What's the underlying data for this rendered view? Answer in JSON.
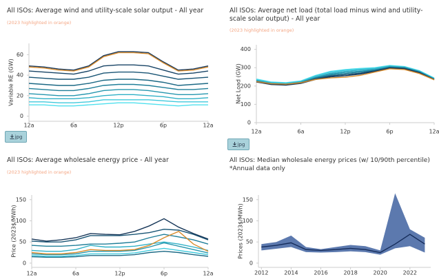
{
  "chart_data": [
    {
      "type": "line",
      "title": "All ISOs: Average wind and utility-scale solar output - All year",
      "subtitle": "(2023 highlighted in orange)",
      "ylabel": "Variable RE (GW)",
      "x": [
        0,
        2,
        4,
        6,
        8,
        10,
        12,
        14,
        16,
        18,
        20,
        22,
        24
      ],
      "xlim": [
        0,
        24
      ],
      "xticks": [
        {
          "value": 0,
          "label": "12a"
        },
        {
          "value": 6,
          "label": "6a"
        },
        {
          "value": 12,
          "label": "12p"
        },
        {
          "value": 18,
          "label": "6p"
        },
        {
          "value": 24,
          "label": "12a"
        }
      ],
      "ylim": [
        -5,
        71
      ],
      "yticks": [
        0,
        20,
        40,
        60
      ],
      "series": [
        {
          "color": "#4fe0ee",
          "values": [
            11,
            11,
            10,
            10,
            11,
            12,
            13,
            13,
            12,
            11,
            10,
            11,
            11
          ]
        },
        {
          "color": "#3fc9dc",
          "values": [
            14,
            14,
            13,
            13,
            14,
            16,
            16,
            16,
            16,
            15,
            14,
            14,
            14
          ]
        },
        {
          "color": "#2fb0c6",
          "values": [
            18,
            17,
            17,
            17,
            18,
            20,
            21,
            21,
            20,
            19,
            17,
            17,
            18
          ]
        },
        {
          "color": "#2596ae",
          "values": [
            22,
            21,
            20,
            20,
            22,
            25,
            26,
            26,
            25,
            23,
            21,
            21,
            22
          ]
        },
        {
          "color": "#1f7e98",
          "values": [
            27,
            26,
            25,
            25,
            27,
            30,
            31,
            31,
            30,
            28,
            26,
            26,
            27
          ]
        },
        {
          "color": "#1b6884",
          "values": [
            32,
            31,
            30,
            30,
            32,
            35,
            36,
            36,
            35,
            33,
            30,
            31,
            32
          ]
        },
        {
          "color": "#185474",
          "values": [
            38,
            37,
            36,
            36,
            38,
            42,
            43,
            43,
            42,
            39,
            36,
            37,
            38
          ]
        },
        {
          "color": "#174365",
          "values": [
            44,
            43,
            42,
            41,
            44,
            49,
            50,
            50,
            49,
            45,
            41,
            42,
            44
          ]
        },
        {
          "color": "#163658",
          "values": [
            49,
            48,
            46,
            45,
            49,
            59,
            63,
            63,
            62,
            53,
            45,
            46,
            49
          ]
        },
        {
          "color": "#d98b2b",
          "values": [
            48,
            47,
            45,
            44,
            48,
            58,
            62,
            62,
            61,
            52,
            44,
            45,
            48
          ]
        }
      ]
    },
    {
      "type": "line",
      "title": "All ISOs: Average net load (total load minus wind and utility-scale solar output) - All year",
      "subtitle": "(2023 highlighted in orange)",
      "ylabel": "Net Load (GW)",
      "x": [
        0,
        2,
        4,
        6,
        8,
        10,
        12,
        14,
        16,
        18,
        20,
        22,
        24
      ],
      "xlim": [
        0,
        24
      ],
      "xticks": [
        {
          "value": 0,
          "label": "12a"
        },
        {
          "value": 6,
          "label": "6a"
        },
        {
          "value": 12,
          "label": "12p"
        },
        {
          "value": 18,
          "label": "6p"
        },
        {
          "value": 24,
          "label": "12a"
        }
      ],
      "ylim": [
        0,
        425
      ],
      "yticks": [
        0,
        100,
        200,
        300,
        400
      ],
      "series": [
        {
          "color": "#4fe0ee",
          "values": [
            238,
            222,
            218,
            228,
            258,
            280,
            290,
            296,
            300,
            312,
            306,
            284,
            244
          ]
        },
        {
          "color": "#3fc9dc",
          "values": [
            234,
            219,
            215,
            225,
            255,
            276,
            286,
            292,
            297,
            310,
            304,
            282,
            242
          ]
        },
        {
          "color": "#2fb0c6",
          "values": [
            230,
            216,
            212,
            222,
            250,
            270,
            280,
            287,
            293,
            307,
            302,
            280,
            240
          ]
        },
        {
          "color": "#2596ae",
          "values": [
            228,
            214,
            210,
            220,
            246,
            265,
            274,
            281,
            289,
            304,
            300,
            278,
            238
          ]
        },
        {
          "color": "#1f7e98",
          "values": [
            226,
            212,
            209,
            218,
            243,
            260,
            268,
            276,
            286,
            302,
            298,
            276,
            237
          ]
        },
        {
          "color": "#185474",
          "values": [
            224,
            210,
            207,
            216,
            240,
            255,
            262,
            270,
            283,
            300,
            296,
            274,
            236
          ]
        },
        {
          "color": "#163658",
          "values": [
            222,
            208,
            205,
            214,
            236,
            250,
            256,
            265,
            280,
            297,
            294,
            272,
            234
          ]
        },
        {
          "color": "#d98b2b",
          "values": [
            224,
            213,
            210,
            218,
            236,
            244,
            248,
            258,
            276,
            294,
            290,
            268,
            234
          ]
        }
      ]
    },
    {
      "type": "line",
      "title": "All ISOs: Average wholesale energy price - All year",
      "subtitle": "(2023 highlighted in orange)",
      "ylabel": "Price (2023$/MWh)",
      "x": [
        0,
        2,
        4,
        6,
        8,
        10,
        12,
        14,
        16,
        18,
        20,
        22,
        24
      ],
      "xlim": [
        0,
        24
      ],
      "xticks": [
        {
          "value": 0,
          "label": "12a"
        },
        {
          "value": 6,
          "label": "6a"
        },
        {
          "value": 12,
          "label": "12p"
        },
        {
          "value": 18,
          "label": "6p"
        },
        {
          "value": 24,
          "label": "12a"
        }
      ],
      "ylim": [
        -10,
        161
      ],
      "yticks": [
        0,
        50,
        100,
        150
      ],
      "series": [
        {
          "color": "#1b6884",
          "values": [
            15,
            14,
            14,
            15,
            18,
            18,
            18,
            20,
            25,
            28,
            25,
            20,
            16
          ]
        },
        {
          "color": "#3fc9dc",
          "values": [
            18,
            16,
            16,
            18,
            22,
            22,
            22,
            24,
            30,
            35,
            30,
            25,
            20
          ]
        },
        {
          "color": "#2596ae",
          "values": [
            22,
            20,
            20,
            22,
            28,
            28,
            28,
            30,
            38,
            48,
            40,
            32,
            24
          ]
        },
        {
          "color": "#2fb0c6",
          "values": [
            30,
            28,
            28,
            32,
            42,
            38,
            38,
            40,
            45,
            50,
            45,
            38,
            30
          ]
        },
        {
          "color": "#1f7e98",
          "values": [
            42,
            40,
            40,
            42,
            45,
            45,
            47,
            50,
            60,
            68,
            62,
            55,
            45
          ]
        },
        {
          "color": "#185474",
          "values": [
            52,
            50,
            50,
            55,
            65,
            65,
            65,
            68,
            72,
            80,
            78,
            68,
            55
          ]
        },
        {
          "color": "#163658",
          "values": [
            57,
            52,
            55,
            60,
            70,
            68,
            67,
            75,
            88,
            105,
            85,
            70,
            57
          ]
        },
        {
          "color": "#d98b2b",
          "values": [
            25,
            22,
            22,
            25,
            32,
            30,
            30,
            32,
            42,
            60,
            75,
            45,
            28
          ]
        }
      ]
    },
    {
      "type": "band",
      "title": "All ISOs: Median wholesale energy prices (w/ 10/90th percentile)",
      "note": "*Annual data only",
      "ylabel": "Prices (2023$/MWh)",
      "x": [
        2012,
        2013,
        2014,
        2015,
        2016,
        2017,
        2018,
        2019,
        2020,
        2021,
        2022,
        2023
      ],
      "xlim": [
        2011.8,
        2023.4
      ],
      "xticks": [
        2012,
        2014,
        2016,
        2018,
        2020,
        2022
      ],
      "ylim": [
        -10,
        161
      ],
      "yticks": [
        0,
        50,
        100,
        150
      ],
      "band": {
        "color": "#4a6aa5",
        "lower": [
          30,
          34,
          38,
          26,
          25,
          26,
          28,
          26,
          20,
          35,
          40,
          25
        ],
        "upper": [
          45,
          50,
          65,
          38,
          33,
          38,
          43,
          40,
          30,
          165,
          80,
          60
        ]
      },
      "series": [
        {
          "color": "#152c5a",
          "values": [
            38,
            42,
            48,
            32,
            30,
            32,
            35,
            32,
            25,
            45,
            68,
            45
          ]
        }
      ]
    }
  ],
  "download_buttons": [
    {
      "label": "jpg"
    },
    {
      "label": "jpg"
    }
  ]
}
